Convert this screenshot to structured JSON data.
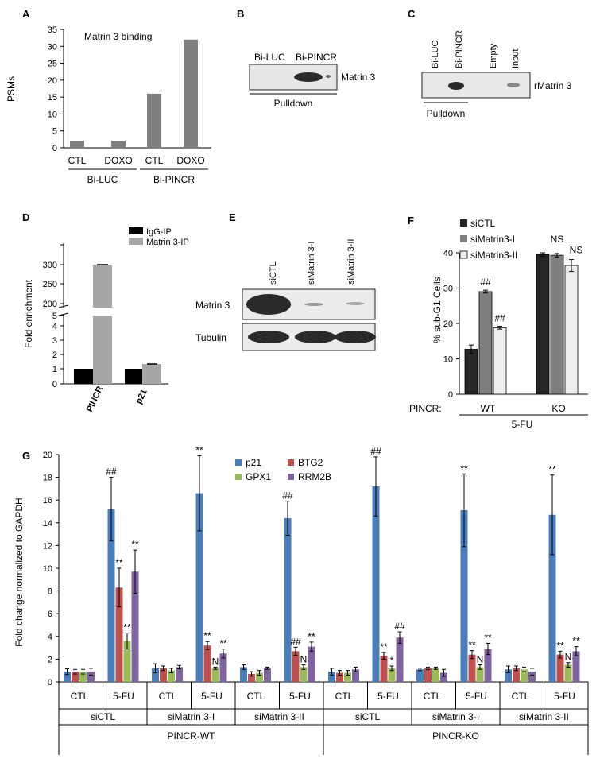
{
  "colors": {
    "gray_bar": "#7f7f7f",
    "black": "#000000",
    "light_gray": "#a6a6a6",
    "dark_gray": "#262626",
    "mid_gray": "#7f7f7f",
    "white_bar": "#eeeeee",
    "blue": "#4a7ebb",
    "red": "#c0504d",
    "green": "#9bbb59",
    "purple": "#8064a2",
    "blot_bg": "#e6e6e6",
    "band": "#2a2a2a"
  },
  "panel_letters": [
    "A",
    "B",
    "C",
    "D",
    "E",
    "F",
    "G"
  ],
  "chart_data": [
    {
      "panel": "A",
      "type": "bar",
      "title": "Matrin 3 binding",
      "ylabel": "PSMs",
      "ylim": [
        0,
        35
      ],
      "yticks": [
        0,
        5,
        10,
        15,
        20,
        25,
        30,
        35
      ],
      "categories": [
        "CTL",
        "DOXO",
        "CTL",
        "DOXO"
      ],
      "groups": [
        "Bi-LUC",
        "Bi-PINCR"
      ],
      "values": [
        2,
        2,
        16,
        32
      ]
    },
    {
      "panel": "D",
      "type": "bar",
      "ylabel": "Fold enrichment",
      "yticks_lower": [
        "0",
        "1",
        "2",
        "3",
        "4",
        "5"
      ],
      "yticks_upper": [
        "200",
        "250",
        "300"
      ],
      "categories": [
        "PINCR",
        "p21"
      ],
      "series": [
        {
          "name": "IgG-IP",
          "values": [
            1,
            1
          ]
        },
        {
          "name": "Matrin 3-IP",
          "values": [
            300,
            1.3
          ]
        }
      ]
    },
    {
      "panel": "F",
      "type": "bar",
      "ylabel": "% sub-G1 Cells",
      "ylim": [
        0,
        40
      ],
      "yticks": [
        0,
        10,
        20,
        30,
        40
      ],
      "row_label": "PINCR:",
      "categories": [
        "WT",
        "KO"
      ],
      "treatment": "5-FU",
      "series": [
        {
          "name": "siCTL",
          "values": [
            12.7,
            39.5
          ],
          "errors": [
            1.2,
            0.5
          ]
        },
        {
          "name": "siMatrin3-I",
          "values": [
            29.0,
            39.3
          ],
          "errors": [
            0.4,
            0.5
          ]
        },
        {
          "name": "siMatrin3-II",
          "values": [
            18.8,
            36.4
          ],
          "errors": [
            0.4,
            1.7
          ]
        }
      ],
      "annotations": {
        "siMatrin3-I": [
          "##",
          "NS"
        ],
        "siMatrin3-II": [
          "##",
          "NS"
        ]
      }
    },
    {
      "panel": "G",
      "type": "bar",
      "ylabel": "Fold change normalized to GAPDH",
      "ylim": [
        0,
        20
      ],
      "yticks": [
        0,
        2,
        4,
        6,
        8,
        10,
        12,
        14,
        16,
        18,
        20
      ],
      "categories": [
        "CTL",
        "5-FU",
        "CTL",
        "5-FU",
        "CTL",
        "5-FU",
        "CTL",
        "5-FU",
        "CTL",
        "5-FU",
        "CTL",
        "5-FU"
      ],
      "si_groups": [
        "siCTL",
        "siMatrin 3-I",
        "siMatrin 3-II",
        "siCTL",
        "siMatrin 3-I",
        "siMatrin 3-II"
      ],
      "line_groups": [
        "PINCR-WT",
        "PINCR-KO"
      ],
      "series": [
        {
          "name": "p21",
          "values": [
            0.9,
            1.2,
            1.3,
            0.9,
            1.1,
            1.1,
            15.2,
            16.6,
            14.4,
            17.2,
            15.1,
            14.7
          ],
          "errors": [
            0.25,
            0.4,
            0.2,
            0.3,
            0.1,
            0.3,
            2.8,
            3.3,
            1.5,
            2.6,
            3.2,
            3.5
          ],
          "labels": [
            "",
            "",
            "",
            "",
            "",
            "",
            "##",
            "**",
            "##",
            "##",
            "**",
            "**"
          ]
        },
        {
          "name": "BTG2",
          "values": [
            0.9,
            1.2,
            0.7,
            0.8,
            1.2,
            1.2,
            8.3,
            3.2,
            2.7,
            2.3,
            2.4,
            2.4
          ],
          "errors": [
            0.2,
            0.2,
            0.2,
            0.2,
            0.1,
            0.2,
            1.7,
            0.35,
            0.35,
            0.3,
            0.35,
            0.3
          ],
          "labels": [
            "",
            "",
            "",
            "",
            "",
            "",
            "**",
            "**",
            "##",
            "**",
            "**",
            "**"
          ]
        },
        {
          "name": "GPX1",
          "values": [
            0.9,
            1.0,
            0.8,
            0.8,
            1.2,
            1.1,
            3.6,
            1.2,
            1.3,
            1.2,
            1.3,
            1.5
          ],
          "errors": [
            0.2,
            0.2,
            0.2,
            0.2,
            0.1,
            0.2,
            0.7,
            0.1,
            0.2,
            0.2,
            0.2,
            0.2
          ],
          "labels": [
            "",
            "",
            "",
            "",
            "",
            "",
            "**",
            "NS",
            "NS",
            "*",
            "NS",
            "NS"
          ]
        },
        {
          "name": "RRM2B",
          "values": [
            0.9,
            1.3,
            1.2,
            1.1,
            0.8,
            0.9,
            9.7,
            2.5,
            3.1,
            3.9,
            2.9,
            2.7
          ],
          "errors": [
            0.3,
            0.15,
            0.1,
            0.2,
            0.3,
            0.3,
            1.9,
            0.4,
            0.4,
            0.5,
            0.5,
            0.4
          ],
          "labels": [
            "",
            "",
            "",
            "",
            "",
            "",
            "**",
            "**",
            "**",
            "##",
            "**",
            "**"
          ]
        }
      ]
    }
  ],
  "blots": {
    "B": {
      "lanes": [
        "Bi-LUC",
        "Bi-PINCR"
      ],
      "band_label": "Matrin 3",
      "footer": "Pulldown"
    },
    "C": {
      "lanes": [
        "Bi-LUC",
        "Bi-PINCR",
        "Empty",
        "Input"
      ],
      "band_label": "rMatrin 3",
      "footer": "Pulldown"
    },
    "E": {
      "lanes": [
        "siCTL",
        "siMatrin 3-I",
        "siMatrin 3-II"
      ],
      "rows": [
        "Matrin 3",
        "Tubulin"
      ]
    }
  }
}
